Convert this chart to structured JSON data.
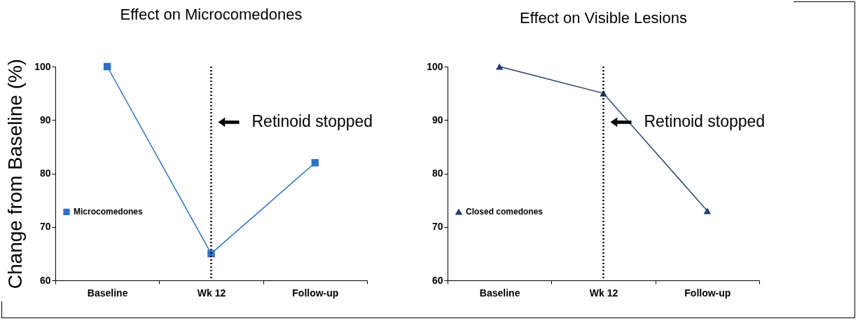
{
  "chart_data": [
    {
      "type": "line",
      "title": "Effect on Microcomedones",
      "ylabel": "Change from Baseline (%)",
      "categories": [
        "Baseline",
        "Wk 12",
        "Follow-up"
      ],
      "series": [
        {
          "name": "Microcomedones",
          "color": "#2f72c4",
          "values": [
            100,
            65,
            82
          ]
        }
      ],
      "ylim": [
        60,
        100
      ],
      "yticks": [
        60,
        70,
        80,
        90,
        100
      ],
      "marker": "square",
      "legend": "left",
      "grid": false,
      "ref_lines": [
        {
          "axis": "x",
          "value": "Wk 12",
          "label": "Retinoid stopped",
          "line_style": "dotted",
          "color": "#000000"
        }
      ]
    },
    {
      "type": "line",
      "title": "Effect on Visible Lesions",
      "categories": [
        "Baseline",
        "Wk 12",
        "Follow-up"
      ],
      "series": [
        {
          "name": "Closed comedones",
          "color": "#1f3d6e",
          "values": [
            100,
            95,
            73
          ]
        }
      ],
      "ylim": [
        60,
        100
      ],
      "yticks": [
        60,
        70,
        80,
        90,
        100
      ],
      "marker": "triangle",
      "legend": "left",
      "grid": false,
      "ref_lines": [
        {
          "axis": "x",
          "value": "Wk 12",
          "label": "Retinoid stopped",
          "line_style": "dotted",
          "color": "#000000"
        }
      ]
    }
  ]
}
